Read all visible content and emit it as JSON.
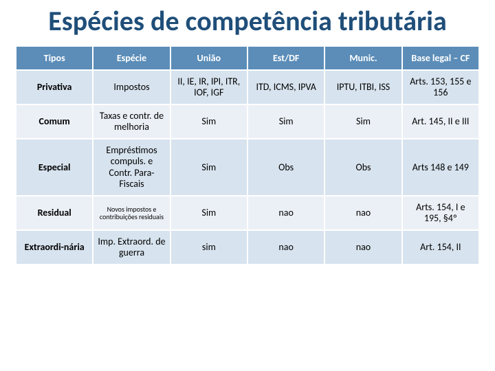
{
  "title": {
    "text": "Espécies de competência tributária",
    "fontsize": 40,
    "color": "#1f4e79"
  },
  "table": {
    "header_bg": "#5b8db8",
    "header_fg": "#ffffff",
    "band_a_bg": "#d7e3ee",
    "band_b_bg": "#ebf0f6",
    "header_fontsize": 14,
    "cell_fontsize": 14,
    "columns": [
      "Tipos",
      "Espécie",
      "União",
      "Est/DF",
      "Munic.",
      "Base legal – CF"
    ],
    "rows": [
      {
        "tipos": "Privativa",
        "especie": "Impostos",
        "uniao": "II, IE, IR, IPI, ITR, IOF, IGF",
        "estdf": "ITD, ICMS, IPVA",
        "munic": "IPTU, ITBI, ISS",
        "base": "Arts. 153, 155 e 156"
      },
      {
        "tipos": "Comum",
        "especie": "Taxas e contr. de melhoria",
        "uniao": "Sim",
        "estdf": "Sim",
        "munic": "Sim",
        "base": "Art. 145, II e III"
      },
      {
        "tipos": "Especial",
        "especie": "Empréstimos compuls. e Contr. Para-Fiscais",
        "uniao": "Sim",
        "estdf": "Obs",
        "munic": "Obs",
        "base": "Arts 148 e 149"
      },
      {
        "tipos": "Residual",
        "especie": "Novos impostos e contribuições residuais",
        "especie_size": "xsmall",
        "uniao": "Sim",
        "estdf": "nao",
        "munic": "nao",
        "base": "Arts. 154, I e 195, §4º"
      },
      {
        "tipos": "Extraordi-nária",
        "especie": "Imp. Extraord. de guerra",
        "uniao": "sim",
        "estdf": "nao",
        "munic": "nao",
        "base": "Art. 154, II"
      }
    ]
  }
}
